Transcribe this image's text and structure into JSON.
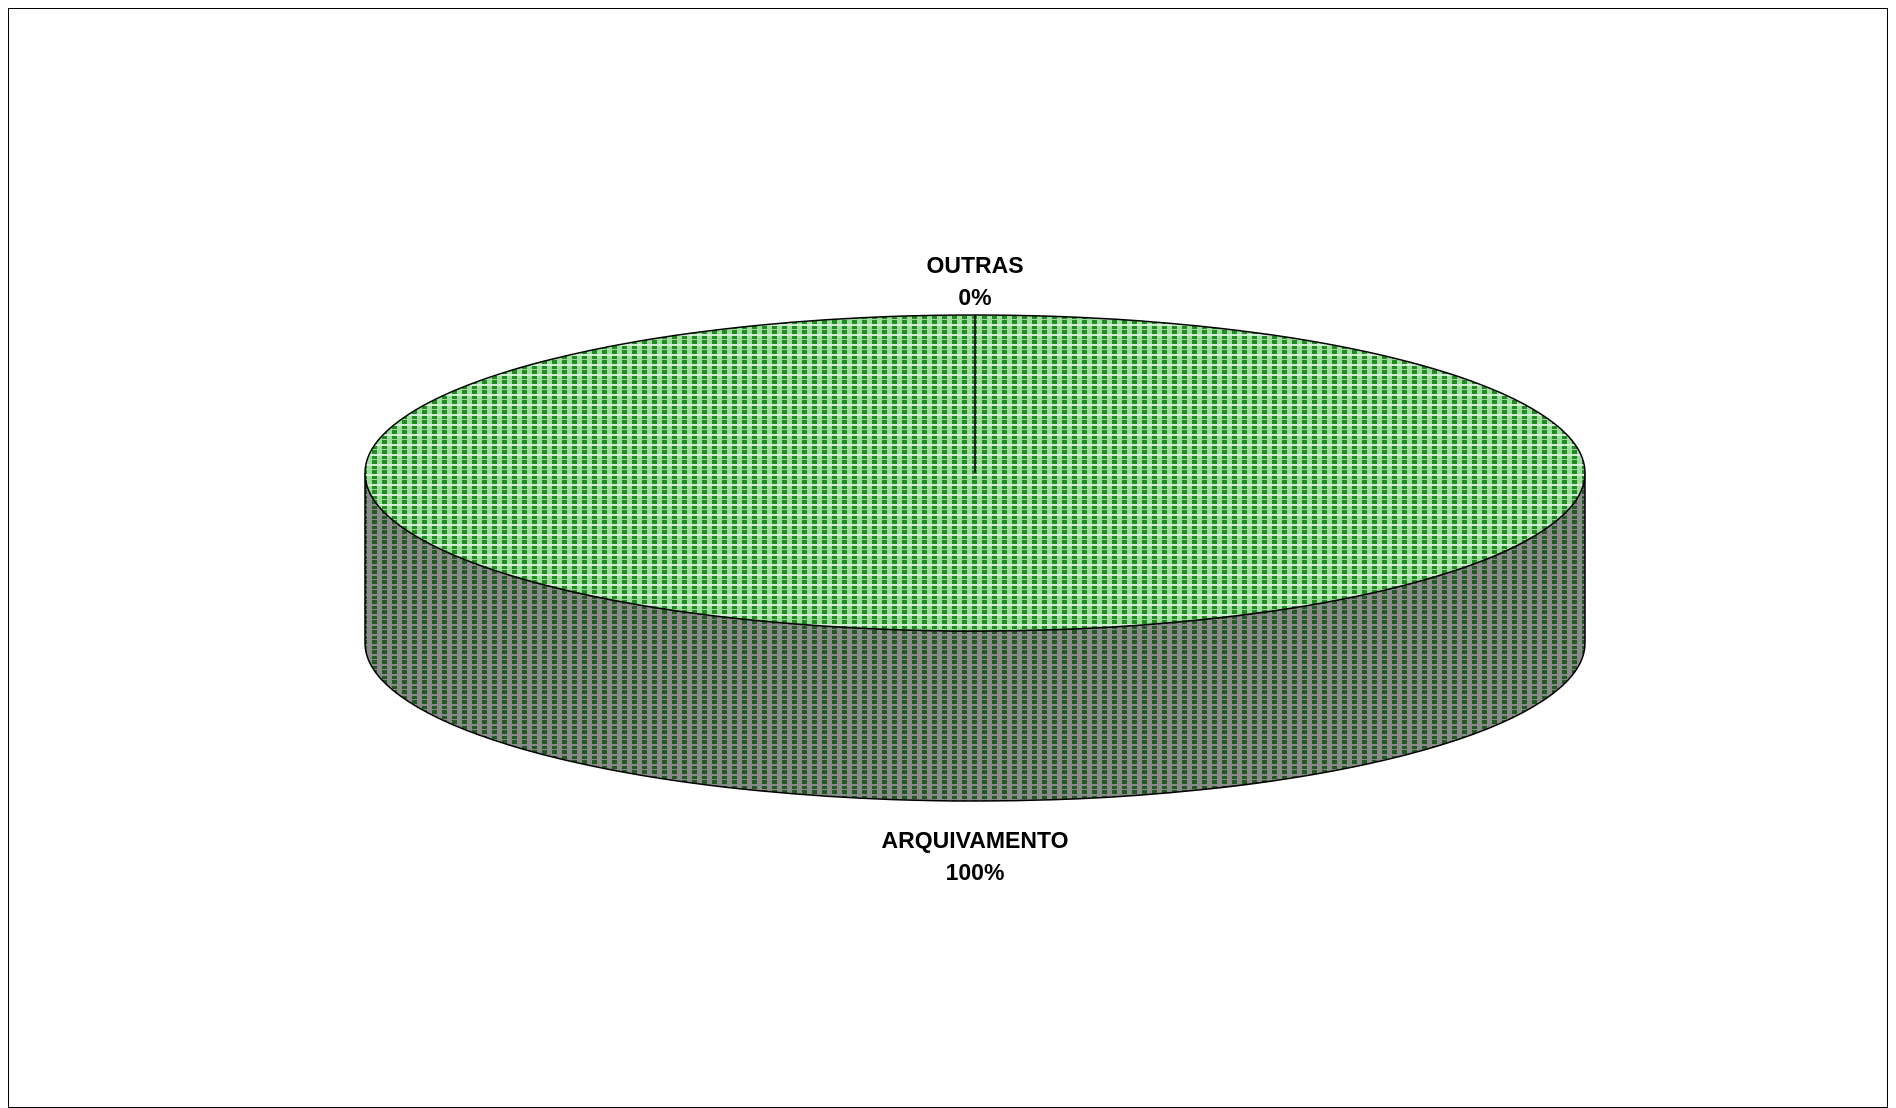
{
  "chart_data": {
    "type": "pie",
    "style": "3d",
    "title": "",
    "slices": [
      {
        "label": "ARQUIVAMENTO",
        "value": 100,
        "value_label": "100%"
      },
      {
        "label": "OUTRAS",
        "value": 0,
        "value_label": "0%"
      }
    ],
    "colors": {
      "top_light": "#9edc9e",
      "top_dark": "#1e8c1e",
      "side_light": "#8a8a8a",
      "side_dark": "#1f5a1f",
      "outline": "#000000"
    },
    "legend": "none"
  }
}
